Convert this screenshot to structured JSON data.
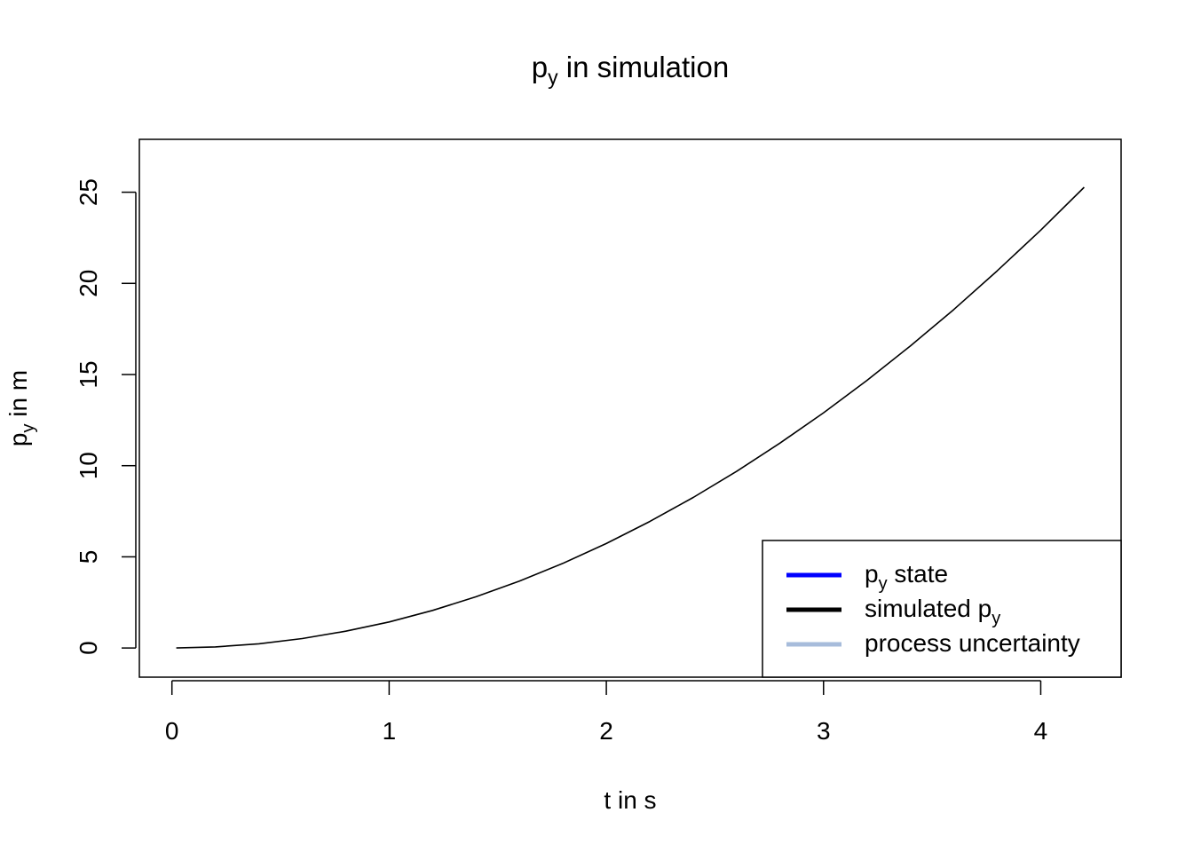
{
  "chart_data": {
    "type": "line",
    "title": {
      "main": "p",
      "sub": "y",
      "rest": " in simulation"
    },
    "xlabel": "t in s",
    "ylabel": {
      "main": "p",
      "sub": "y",
      "rest": " in m"
    },
    "xlim": [
      -0.15,
      4.37
    ],
    "ylim": [
      -1.6,
      27.9
    ],
    "xticks": [
      0,
      1,
      2,
      3,
      4
    ],
    "yticks": [
      0,
      5,
      10,
      15,
      20,
      25
    ],
    "grid": false,
    "legend": {
      "position": "bottom-right",
      "entries": [
        {
          "main": "p",
          "sub": "y",
          "rest": " state",
          "color": "#0000FF"
        },
        {
          "main": "simulated p",
          "sub": "y",
          "rest": "",
          "color": "#000000"
        },
        {
          "main": "process uncertainty",
          "sub": "",
          "rest": "",
          "color": "#A7BCDB"
        }
      ]
    },
    "series": [
      {
        "color": "#000000",
        "x": [
          0.02,
          0.2,
          0.4,
          0.6,
          0.8,
          1.0,
          1.2,
          1.4,
          1.6,
          1.8,
          2.0,
          2.2,
          2.4,
          2.6,
          2.8,
          3.0,
          3.2,
          3.4,
          3.6,
          3.8,
          4.0,
          4.2
        ],
        "y": [
          0.0,
          0.06,
          0.23,
          0.52,
          0.92,
          1.43,
          2.06,
          2.81,
          3.67,
          4.64,
          5.73,
          6.94,
          8.26,
          9.69,
          11.24,
          12.9,
          14.68,
          16.57,
          18.57,
          20.69,
          22.92,
          25.27
        ]
      }
    ]
  }
}
